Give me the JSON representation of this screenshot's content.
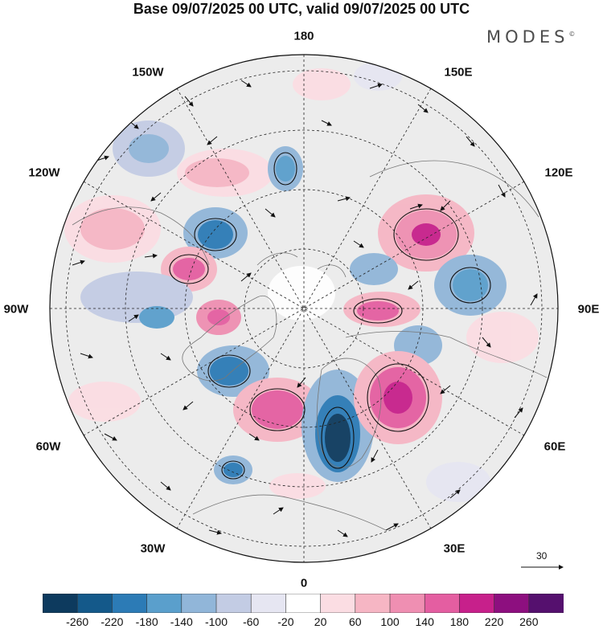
{
  "title": "Base 09/07/2025 00 UTC, valid 09/07/2025 00 UTC",
  "brand": "MODES",
  "brand_mark": "©",
  "longitude_labels": {
    "top": "180",
    "bottom": "0",
    "left": "90W",
    "right": "90E",
    "upper_left": "150W",
    "upper_right": "150E",
    "mid_left_top": "120W",
    "mid_right_top": "120E",
    "mid_left_bottom": "60W",
    "mid_right_bottom": "60E",
    "lower_left": "30W",
    "lower_right": "30E"
  },
  "reference_vector_label": "30",
  "colorbar": {
    "ticks": [
      "-260",
      "-220",
      "-180",
      "-140",
      "-100",
      "-60",
      "-20",
      "20",
      "60",
      "100",
      "140",
      "180",
      "220",
      "260"
    ],
    "colors": [
      "#0d3a5e",
      "#14598a",
      "#2c7bb6",
      "#5a9fcc",
      "#91b6d9",
      "#c3cce4",
      "#e6e6f2",
      "#ffffff",
      "#fbdde3",
      "#f6b6c4",
      "#ef8fb2",
      "#e45ea1",
      "#c7208b",
      "#8d0f7f",
      "#55106e"
    ]
  }
}
